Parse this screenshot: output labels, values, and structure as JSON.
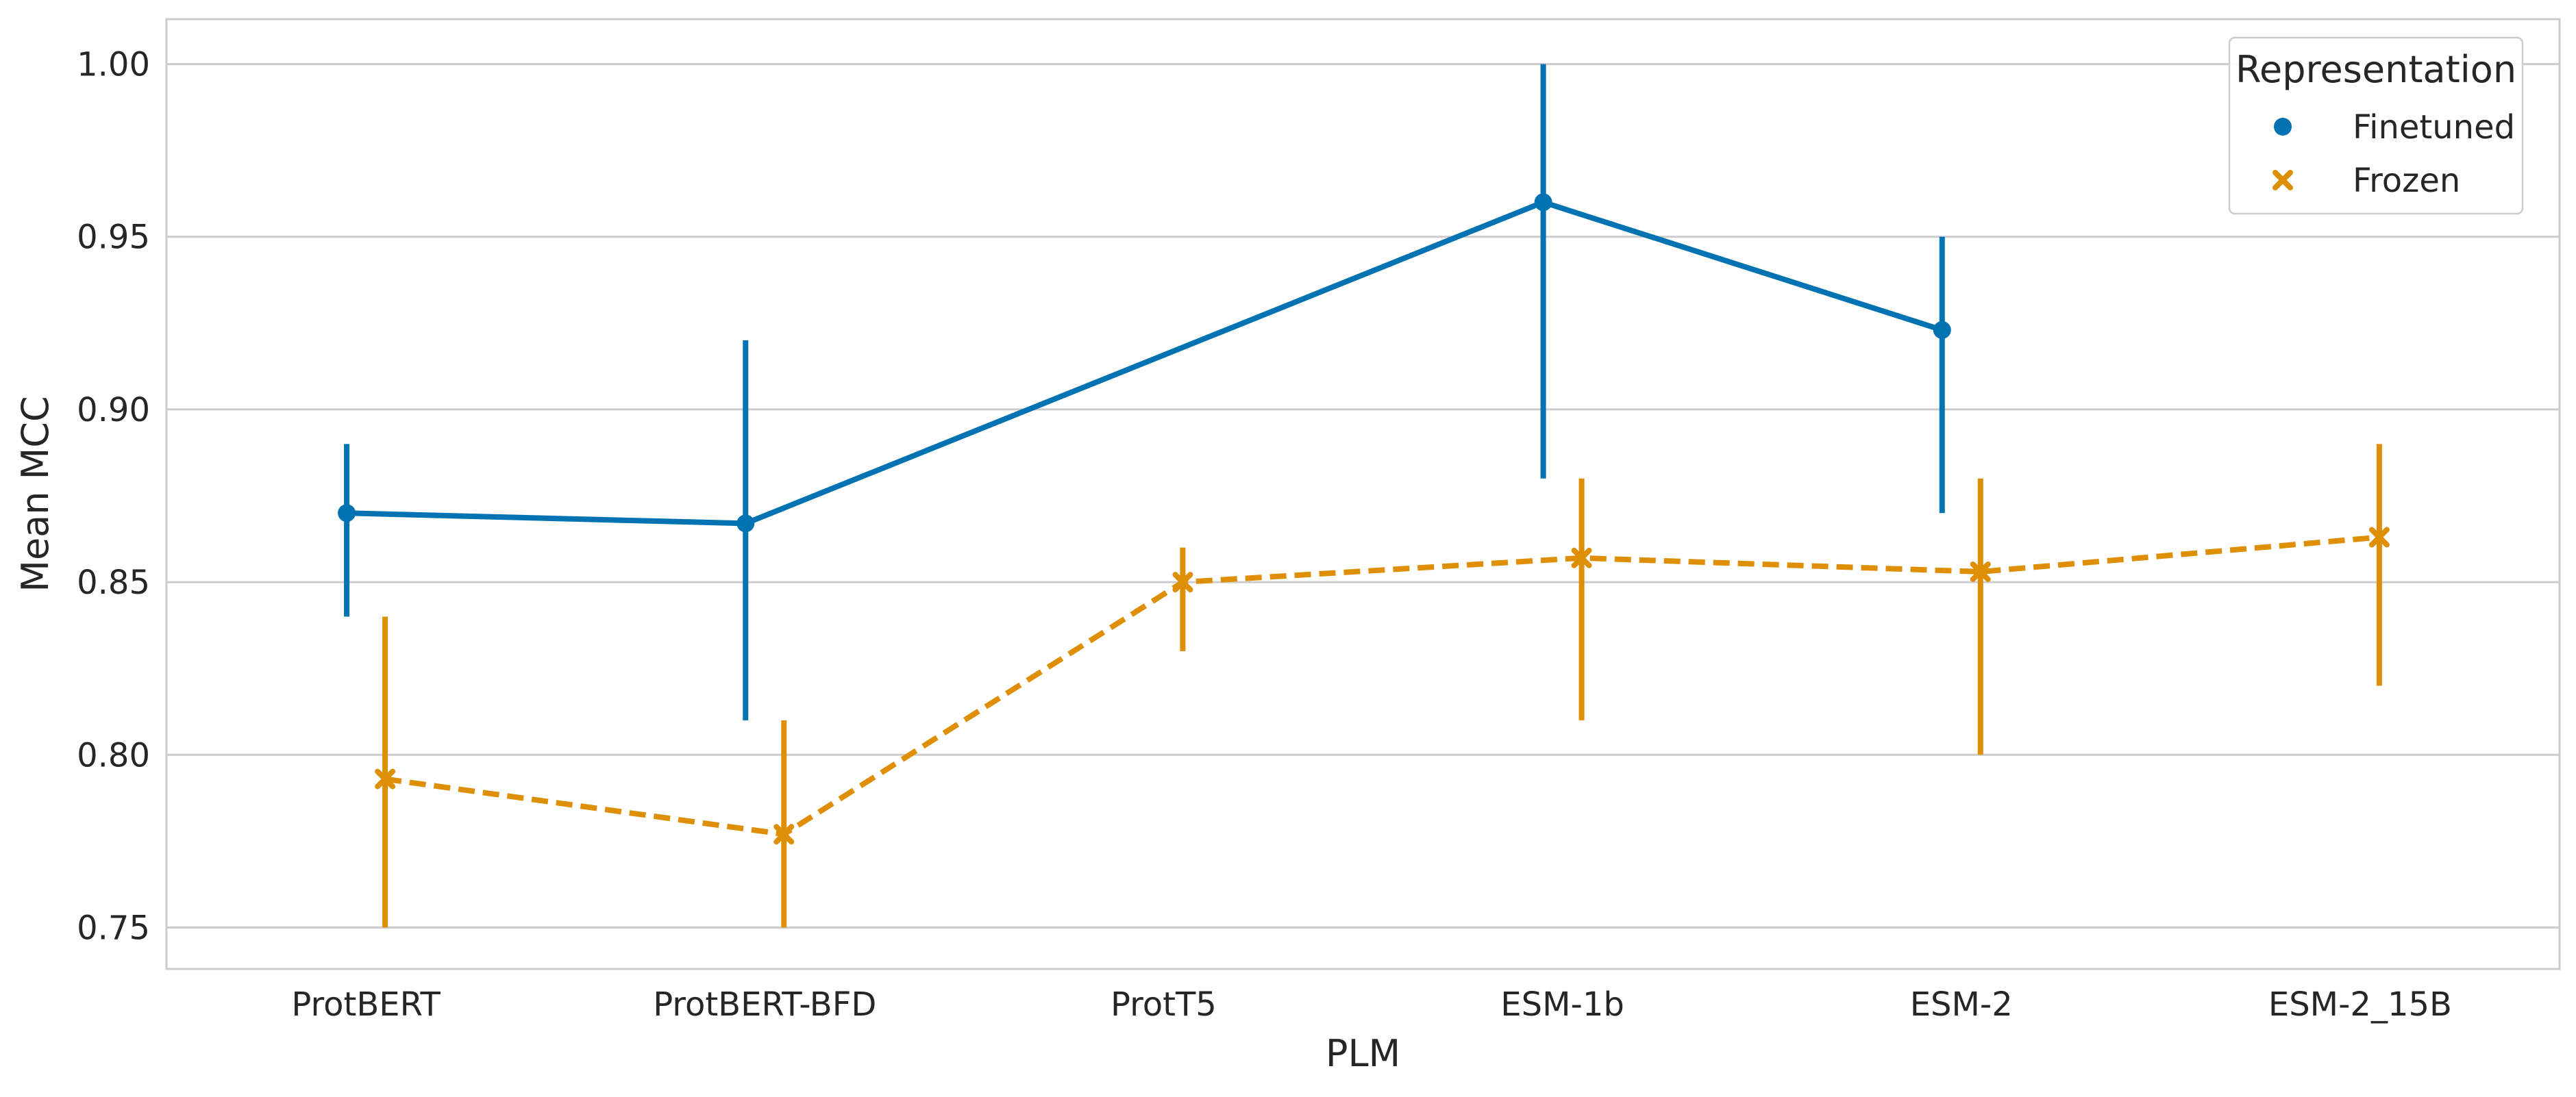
{
  "chart_data": {
    "type": "line",
    "title": "",
    "xlabel": "PLM",
    "ylabel": "Mean MCC",
    "categories": [
      "ProtBERT",
      "ProtBERT-BFD",
      "ProtT5",
      "ESM-1b",
      "ESM-2",
      "ESM-2_15B"
    ],
    "ylim": [
      0.738,
      1.013
    ],
    "yticks": [
      0.75,
      0.8,
      0.85,
      0.9,
      0.95,
      1.0
    ],
    "grid": "horizontal",
    "legend": {
      "title": "Representation",
      "placement": "top-right"
    },
    "series": [
      {
        "name": "Finetuned",
        "color": "#0173b2",
        "marker": "circle",
        "linestyle": "solid",
        "values": [
          0.87,
          0.867,
          null,
          0.96,
          0.923,
          null
        ],
        "err_low": [
          0.84,
          0.81,
          null,
          0.88,
          0.87,
          null
        ],
        "err_high": [
          0.89,
          0.92,
          null,
          1.0,
          0.95,
          null
        ]
      },
      {
        "name": "Frozen",
        "color": "#de8f05",
        "marker": "x",
        "linestyle": "dashed",
        "values": [
          0.793,
          0.777,
          0.85,
          0.857,
          0.853,
          0.863
        ],
        "err_low": [
          0.75,
          0.75,
          0.83,
          0.81,
          0.8,
          0.82
        ],
        "err_high": [
          0.84,
          0.81,
          0.86,
          0.88,
          0.88,
          0.89
        ]
      }
    ]
  }
}
